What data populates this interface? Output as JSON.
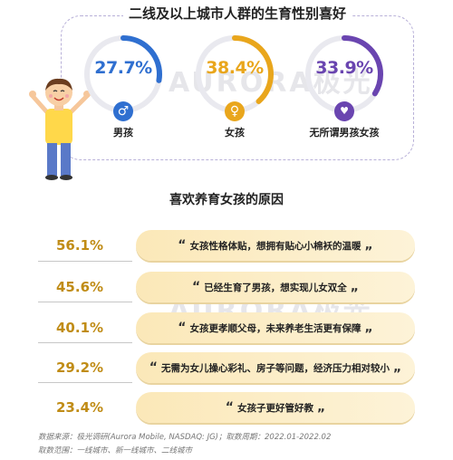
{
  "title": "二线及以上城市人群的生育性别喜好",
  "watermark": "AURORA极光",
  "rings": [
    {
      "value": "27.7%",
      "fraction": 0.277,
      "label": "男孩",
      "color": "#2f6fd0",
      "icon": "male-icon",
      "glyph": "♂"
    },
    {
      "value": "38.4%",
      "fraction": 0.384,
      "label": "女孩",
      "color": "#e9a61c",
      "icon": "female-icon",
      "glyph": "♀"
    },
    {
      "value": "33.9%",
      "fraction": 0.339,
      "label": "无所谓男孩女孩",
      "color": "#6a45b0",
      "icon": "baby-icon",
      "glyph": "♥"
    }
  ],
  "reasons_title": "喜欢养育女孩的原因",
  "chart_data": {
    "type": "bar",
    "categories": [
      "女孩性格体贴，想拥有贴心小棉袄的温暖",
      "已经生育了男孩，想实现儿女双全",
      "女孩更孝顺父母，未来养老生活更有保障",
      "无需为女儿操心彩礼、房子等问题，经济压力相对较小",
      "女孩子更好管好教"
    ],
    "values": [
      56.1,
      45.6,
      40.1,
      29.2,
      23.4
    ],
    "labels": [
      "56.1%",
      "45.6%",
      "40.1%",
      "29.2%",
      "23.4%"
    ]
  },
  "quote_open": "“",
  "quote_close": "„",
  "footer": {
    "line1": "数据来源：极光调研(Aurora Mobile, NASDAQ: JG)；取数周期：2022.01-2022.02",
    "line2": "取数范围：一线城市、新一线城市、二线城市"
  }
}
